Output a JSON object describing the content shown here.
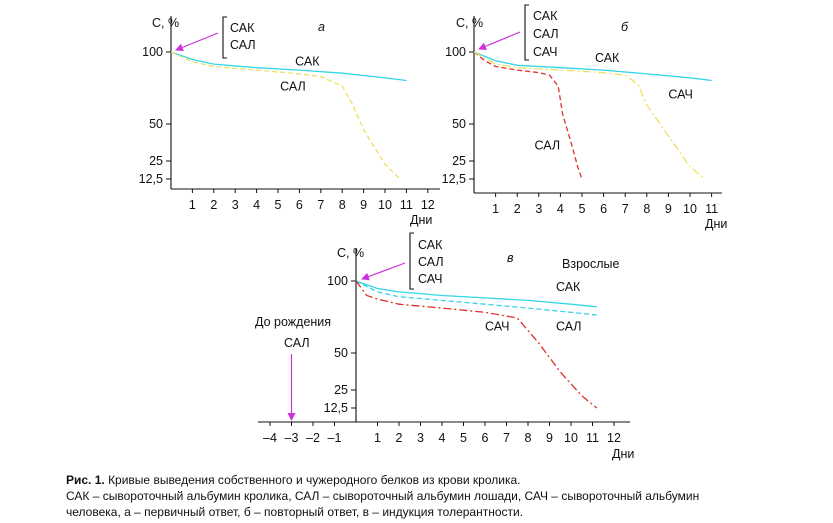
{
  "figure": {
    "caption_bold": "Рис. 1.",
    "caption_title": " Кривые выведения собственного и чужеродного белков из крови кролика.",
    "caption_line2": "САК – сывороточный альбумин кролика, САЛ – сывороточный альбумин лошади, САЧ – сывороточный альбумин",
    "caption_line3": "человека, а – первичный ответ, б – повторный ответ, в – индукция толерантности."
  },
  "chart_data": [
    {
      "type": "line",
      "panel": "а",
      "ylabel": "C, %",
      "xlabel": "Дни",
      "y_tick_labels": [
        "100",
        "50",
        "25",
        "12,5"
      ],
      "y_tick_values": [
        100,
        50,
        25,
        12.5
      ],
      "x_ticks": [
        1,
        2,
        3,
        4,
        5,
        6,
        7,
        8,
        9,
        10,
        11,
        12
      ],
      "xlim": [
        0,
        12.5
      ],
      "legend": [
        "САК",
        "САЛ"
      ],
      "series": [
        {
          "name": "САК",
          "color": "#33d6e6",
          "dash": "solid",
          "points": [
            [
              0,
              100
            ],
            [
              1,
              93
            ],
            [
              2,
              89
            ],
            [
              4,
              86
            ],
            [
              6,
              84
            ],
            [
              8,
              81.5
            ],
            [
              10,
              78
            ],
            [
              11,
              76
            ]
          ]
        },
        {
          "name": "САЛ",
          "color": "#f0e060",
          "dash": "dashed",
          "points": [
            [
              0,
              100
            ],
            [
              1,
              91
            ],
            [
              2,
              87
            ],
            [
              4,
              84
            ],
            [
              6,
              81
            ],
            [
              7,
              79
            ],
            [
              8,
              72
            ],
            [
              8.5,
              60
            ],
            [
              9,
              45
            ],
            [
              10,
              22
            ],
            [
              10.7,
              12.5
            ]
          ]
        }
      ],
      "curve_labels": [
        {
          "text": "САК",
          "x": 5.8,
          "y": 88
        },
        {
          "text": "САЛ",
          "x": 5.1,
          "y": 69
        }
      ]
    },
    {
      "type": "line",
      "panel": "б",
      "ylabel": "C, %",
      "xlabel": "Дни",
      "y_tick_labels": [
        "100",
        "50",
        "25",
        "12,5"
      ],
      "y_tick_values": [
        100,
        50,
        25,
        12.5
      ],
      "x_ticks": [
        1,
        2,
        3,
        4,
        5,
        6,
        7,
        8,
        9,
        10,
        11
      ],
      "xlim": [
        0,
        11.5
      ],
      "legend": [
        "САК",
        "САЛ",
        "САЧ"
      ],
      "series": [
        {
          "name": "САК",
          "color": "#33d6e6",
          "dash": "solid",
          "points": [
            [
              0,
              100
            ],
            [
              1,
              92
            ],
            [
              2,
              88
            ],
            [
              4,
              86
            ],
            [
              6,
              84
            ],
            [
              8,
              81
            ],
            [
              10,
              78
            ],
            [
              11,
              76
            ]
          ]
        },
        {
          "name": "САЛ",
          "color": "#e0302a",
          "dash": "dashed",
          "points": [
            [
              0,
              100
            ],
            [
              0.5,
              92
            ],
            [
              1,
              87
            ],
            [
              2,
              84
            ],
            [
              3,
              82
            ],
            [
              3.5,
              80
            ],
            [
              3.9,
              72
            ],
            [
              4.1,
              55
            ],
            [
              4.5,
              35
            ],
            [
              4.8,
              20
            ],
            [
              5.0,
              12.5
            ]
          ]
        },
        {
          "name": "САЧ",
          "color": "#f0e060",
          "dash": "dashdot",
          "points": [
            [
              0,
              100
            ],
            [
              1,
              89
            ],
            [
              2,
              86
            ],
            [
              4,
              84
            ],
            [
              6,
              82
            ],
            [
              7,
              80
            ],
            [
              7.6,
              73
            ],
            [
              8,
              60
            ],
            [
              9,
              40
            ],
            [
              10,
              20
            ],
            [
              10.7,
              12.5
            ]
          ]
        }
      ],
      "curve_labels": [
        {
          "text": "САК",
          "x": 5.6,
          "y": 91
        },
        {
          "text": "САЧ",
          "x": 9.0,
          "y": 64
        },
        {
          "text": "САЛ",
          "x": 2.8,
          "y": 31
        }
      ]
    },
    {
      "type": "line",
      "panel": "в",
      "ylabel": "C, %",
      "xlabel": "Дни",
      "y_tick_labels": [
        "100",
        "50",
        "25",
        "12,5"
      ],
      "y_tick_values": [
        100,
        50,
        25,
        12.5
      ],
      "x_ticks": [
        -4,
        -3,
        -2,
        -1,
        1,
        2,
        3,
        4,
        5,
        6,
        7,
        8,
        9,
        10,
        11,
        12
      ],
      "x_tick_labels": [
        "–4",
        "–3",
        "–2",
        "–1",
        "1",
        "2",
        "3",
        "4",
        "5",
        "6",
        "7",
        "8",
        "9",
        "10",
        "11",
        "12"
      ],
      "xlim": [
        -4.5,
        12.5
      ],
      "legend": [
        "САК",
        "САЛ",
        "САЧ"
      ],
      "series": [
        {
          "name": "САК",
          "color": "#33d6e6",
          "dash": "solid",
          "points": [
            [
              0,
              100
            ],
            [
              1,
              93
            ],
            [
              2,
              90
            ],
            [
              4,
              87
            ],
            [
              6,
              85
            ],
            [
              8,
              83
            ],
            [
              10,
              80
            ],
            [
              11.2,
              78
            ]
          ]
        },
        {
          "name": "САЛ",
          "color": "#33d6e6",
          "dash": "dashed",
          "points": [
            [
              0,
              100
            ],
            [
              1,
              90
            ],
            [
              2,
              86
            ],
            [
              4,
              83
            ],
            [
              6,
              80
            ],
            [
              8,
              77
            ],
            [
              10,
              74
            ],
            [
              11.2,
              72
            ]
          ]
        },
        {
          "name": "САЧ",
          "color": "#e0302a",
          "dash": "dashdot",
          "points": [
            [
              0,
              100
            ],
            [
              0.5,
              87
            ],
            [
              1,
              84
            ],
            [
              2,
              80
            ],
            [
              4,
              77
            ],
            [
              6,
              74
            ],
            [
              7.5,
              70
            ],
            [
              8.5,
              55
            ],
            [
              9.5,
              35
            ],
            [
              10.5,
              20
            ],
            [
              11.2,
              12.5
            ]
          ]
        }
      ],
      "curve_labels": [
        {
          "text": "САК",
          "x": 9.3,
          "y": 91
        },
        {
          "text": "САЧ",
          "x": 6.0,
          "y": 62
        },
        {
          "text": "САЛ",
          "x": 9.3,
          "y": 62
        }
      ],
      "annotations": [
        "Взрослые",
        "До рождения",
        "САЛ"
      ],
      "birth_arrow_day": -3
    }
  ]
}
